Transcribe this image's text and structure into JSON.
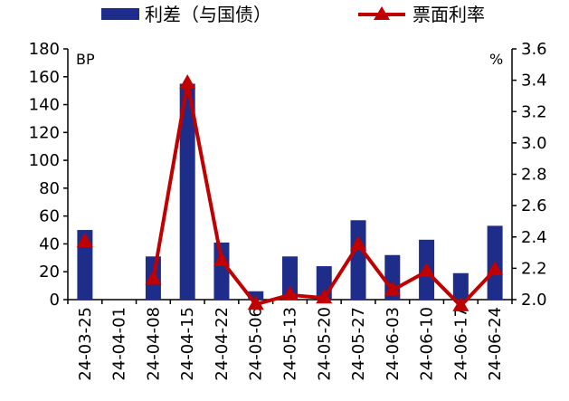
{
  "chart_data": {
    "type": "bar+line",
    "categories": [
      "24-03-25",
      "24-04-01",
      "24-04-08",
      "24-04-15",
      "24-04-22",
      "24-05-06",
      "24-05-13",
      "24-05-20",
      "24-05-27",
      "24-06-03",
      "24-06-10",
      "24-06-17",
      "24-06-24"
    ],
    "series": [
      {
        "name": "利差（与国债）",
        "type": "bar",
        "axis": "left",
        "color": "#1f2d8a",
        "values": [
          50,
          null,
          31,
          155,
          41,
          6,
          31,
          24,
          57,
          32,
          43,
          19,
          53
        ]
      },
      {
        "name": "票面利率",
        "type": "line",
        "axis": "right",
        "color": "#c00000",
        "marker": "triangle",
        "values": [
          2.37,
          null,
          2.13,
          3.38,
          2.25,
          1.97,
          2.03,
          2.01,
          2.35,
          2.06,
          2.18,
          1.96,
          2.19
        ]
      }
    ],
    "left_axis": {
      "unit_label": "BP",
      "min": 0,
      "max": 180,
      "ticks": [
        "0",
        "20",
        "40",
        "60",
        "80",
        "100",
        "120",
        "140",
        "160",
        "180"
      ]
    },
    "right_axis": {
      "unit_label": "%",
      "min": 2.0,
      "max": 3.6,
      "ticks": [
        "2.0",
        "2.2",
        "2.4",
        "2.6",
        "2.8",
        "3.0",
        "3.2",
        "3.4",
        "3.6"
      ]
    },
    "legend_position": "top",
    "grid": false
  }
}
